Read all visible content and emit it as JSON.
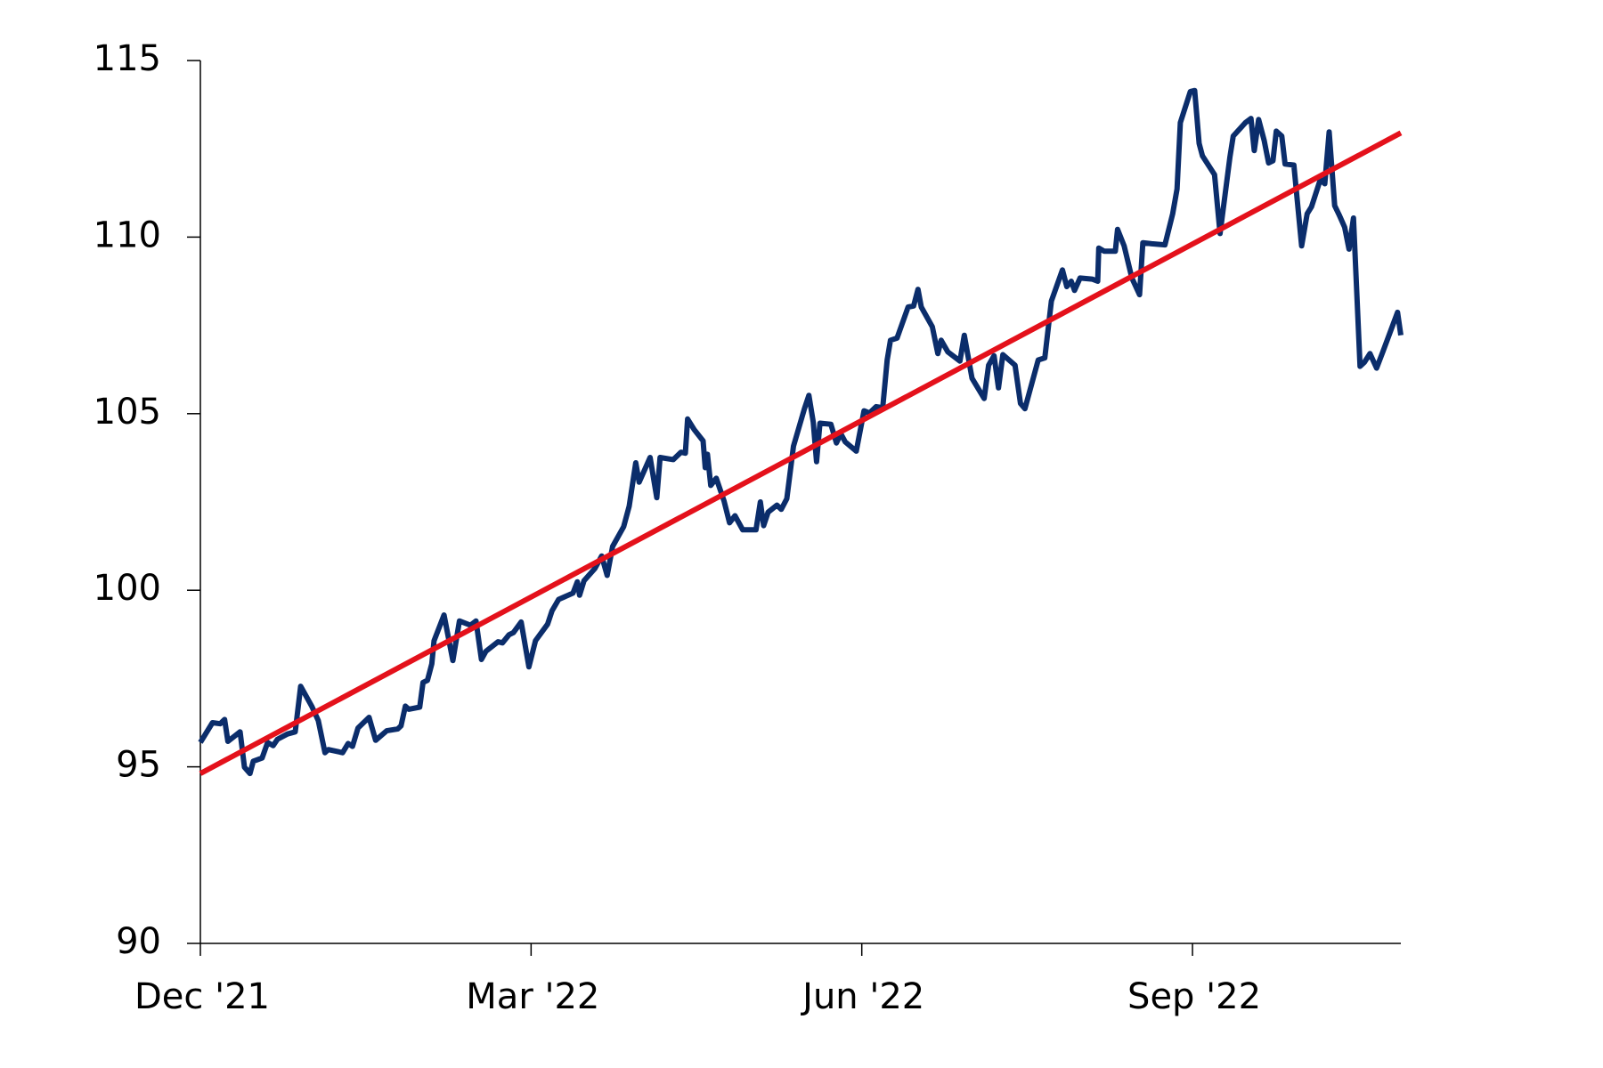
{
  "chart_data": {
    "type": "line",
    "xlim": [
      0,
      10.89
    ],
    "xticks": [
      {
        "value": 0,
        "label": "Dec '21"
      },
      {
        "value": 3,
        "label": "Mar '22"
      },
      {
        "value": 6,
        "label": "Jun '22"
      },
      {
        "value": 9,
        "label": "Sep '22"
      }
    ],
    "ylim": [
      90,
      115
    ],
    "yticks": [
      90,
      95,
      100,
      105,
      110,
      115
    ],
    "grid": false,
    "series": [
      {
        "color": "#0b2d6b",
        "x": [
          0,
          0.11,
          0.18,
          0.22,
          0.25,
          0.36,
          0.4,
          0.45,
          0.48,
          0.56,
          0.61,
          0.66,
          0.7,
          0.79,
          0.86,
          0.91,
          1.01,
          1.07,
          1.13,
          1.16,
          1.29,
          1.34,
          1.38,
          1.43,
          1.53,
          1.59,
          1.69,
          1.79,
          1.82,
          1.86,
          1.89,
          1.99,
          2.02,
          2.06,
          2.1,
          2.12,
          2.21,
          2.29,
          2.35,
          2.45,
          2.5,
          2.55,
          2.59,
          2.7,
          2.74,
          2.8,
          2.84,
          2.91,
          2.98,
          3.04,
          3.15,
          3.19,
          3.25,
          3.38,
          3.42,
          3.44,
          3.48,
          3.58,
          3.64,
          3.69,
          3.74,
          3.84,
          3.89,
          3.95,
          3.98,
          4.08,
          4.14,
          4.17,
          4.29,
          4.36,
          4.4,
          4.42,
          4.48,
          4.56,
          4.58,
          4.6,
          4.63,
          4.68,
          4.75,
          4.8,
          4.85,
          4.92,
          5.04,
          5.08,
          5.11,
          5.15,
          5.23,
          5.27,
          5.32,
          5.38,
          5.48,
          5.52,
          5.56,
          5.59,
          5.62,
          5.72,
          5.77,
          5.81,
          5.85,
          5.95,
          6.02,
          6.07,
          6.13,
          6.19,
          6.23,
          6.26,
          6.32,
          6.42,
          6.47,
          6.51,
          6.54,
          6.64,
          6.69,
          6.72,
          6.78,
          6.89,
          6.93,
          7.0,
          7.11,
          7.15,
          7.2,
          7.24,
          7.28,
          7.39,
          7.44,
          7.48,
          7.6,
          7.66,
          7.72,
          7.82,
          7.86,
          7.9,
          7.93,
          7.98,
          8.09,
          8.14,
          8.15,
          8.2,
          8.3,
          8.32,
          8.38,
          8.45,
          8.52,
          8.55,
          8.63,
          8.75,
          8.82,
          8.86,
          8.89,
          8.98,
          9.02,
          9.06,
          9.09,
          9.2,
          9.25,
          9.34,
          9.37,
          9.48,
          9.53,
          9.56,
          9.6,
          9.65,
          9.69,
          9.73,
          9.76,
          9.81,
          9.84,
          9.92,
          9.99,
          10.04,
          10.08,
          10.16,
          10.2,
          10.24,
          10.29,
          10.33,
          10.38,
          10.42,
          10.46,
          10.52,
          10.56,
          10.61,
          10.67,
          10.73,
          10.86,
          10.89
        ],
        "values": [
          95.69,
          96.25,
          96.22,
          96.34,
          95.72,
          95.99,
          94.99,
          94.81,
          95.16,
          95.25,
          95.69,
          95.6,
          95.78,
          95.93,
          95.99,
          97.28,
          96.72,
          96.31,
          95.4,
          95.49,
          95.4,
          95.66,
          95.58,
          96.1,
          96.4,
          95.75,
          96.02,
          96.07,
          96.16,
          96.72,
          96.63,
          96.69,
          97.39,
          97.45,
          97.92,
          98.57,
          99.3,
          98.01,
          99.13,
          99.01,
          99.13,
          98.04,
          98.27,
          98.54,
          98.51,
          98.74,
          98.8,
          99.1,
          97.83,
          98.57,
          99.04,
          99.42,
          99.74,
          99.92,
          100.24,
          99.86,
          100.27,
          100.62,
          100.97,
          100.42,
          101.24,
          101.8,
          102.38,
          103.61,
          103.06,
          103.76,
          102.62,
          103.76,
          103.7,
          103.91,
          103.88,
          104.85,
          104.55,
          104.23,
          103.47,
          103.85,
          102.97,
          103.17,
          102.53,
          101.91,
          102.11,
          101.71,
          101.71,
          102.5,
          101.83,
          102.21,
          102.41,
          102.29,
          102.59,
          104.08,
          105.14,
          105.52,
          104.76,
          103.64,
          104.73,
          104.7,
          104.17,
          104.43,
          104.2,
          103.94,
          105.08,
          105.02,
          105.2,
          105.17,
          106.52,
          107.08,
          107.14,
          108.02,
          108.05,
          108.52,
          108.02,
          107.46,
          106.7,
          107.08,
          106.75,
          106.49,
          107.22,
          106.0,
          105.43,
          106.37,
          106.64,
          105.73,
          106.67,
          106.37,
          105.29,
          105.14,
          106.52,
          106.58,
          108.19,
          109.07,
          108.6,
          108.75,
          108.49,
          108.84,
          108.81,
          108.75,
          109.69,
          109.6,
          109.6,
          110.22,
          109.75,
          108.84,
          108.37,
          109.84,
          109.81,
          109.78,
          110.66,
          111.36,
          113.24,
          114.12,
          114.15,
          112.65,
          112.3,
          111.77,
          110.1,
          112.27,
          112.86,
          113.24,
          113.36,
          112.45,
          113.33,
          112.74,
          112.1,
          112.16,
          113.0,
          112.86,
          112.07,
          112.04,
          109.75,
          110.66,
          110.86,
          111.63,
          111.51,
          112.98,
          110.89,
          110.63,
          110.28,
          109.66,
          110.54,
          106.34,
          106.46,
          106.7,
          106.29,
          106.78,
          107.87,
          107.22
        ]
      },
      {
        "color": "#e4111b",
        "x": [
          0,
          10.89
        ],
        "values": [
          94.81,
          112.95
        ]
      }
    ]
  }
}
